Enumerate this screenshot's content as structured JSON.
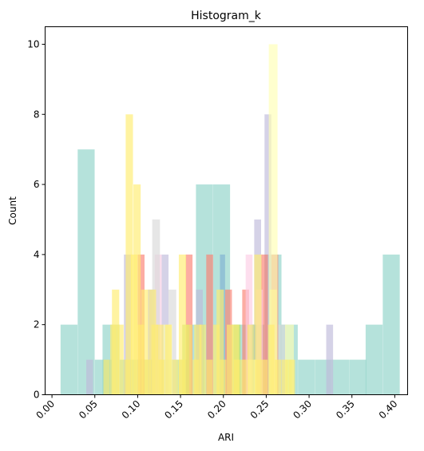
{
  "chart_data": {
    "type": "histogram",
    "title": "Histogram_k",
    "xlabel": "ARI",
    "ylabel": "Count",
    "xlim": [
      -0.008,
      0.415
    ],
    "ylim": [
      0,
      10.5
    ],
    "x_ticks": [
      "0.00",
      "0.05",
      "0.10",
      "0.15",
      "0.20",
      "0.25",
      "0.30",
      "0.35",
      "0.40"
    ],
    "y_ticks": [
      "0",
      "2",
      "4",
      "6",
      "8",
      "10"
    ],
    "x_tick_rotation": 45,
    "grid": false,
    "legend": "none",
    "series": [
      {
        "color": "#8dd3c7",
        "bin_width": 0.0198,
        "bins": [
          {
            "x": 0.01,
            "count": 2
          },
          {
            "x": 0.03,
            "count": 7
          },
          {
            "x": 0.05,
            "count": 1
          },
          {
            "x": 0.059,
            "count": 2
          },
          {
            "x": 0.079,
            "count": 1
          },
          {
            "x": 0.099,
            "count": 1
          },
          {
            "x": 0.119,
            "count": 1
          },
          {
            "x": 0.139,
            "count": 1
          },
          {
            "x": 0.158,
            "count": 2
          },
          {
            "x": 0.168,
            "count": 6
          },
          {
            "x": 0.188,
            "count": 6
          },
          {
            "x": 0.208,
            "count": 2
          },
          {
            "x": 0.228,
            "count": 2
          },
          {
            "x": 0.248,
            "count": 4
          },
          {
            "x": 0.267,
            "count": 2
          },
          {
            "x": 0.287,
            "count": 1
          },
          {
            "x": 0.307,
            "count": 1
          },
          {
            "x": 0.327,
            "count": 1
          },
          {
            "x": 0.347,
            "count": 1
          },
          {
            "x": 0.366,
            "count": 2
          },
          {
            "x": 0.386,
            "count": 4
          }
        ]
      },
      {
        "color": "#bebada",
        "bin_width": 0.008,
        "bins": [
          {
            "x": 0.04,
            "count": 1
          },
          {
            "x": 0.084,
            "count": 4
          },
          {
            "x": 0.112,
            "count": 3
          },
          {
            "x": 0.128,
            "count": 4
          },
          {
            "x": 0.168,
            "count": 3
          },
          {
            "x": 0.236,
            "count": 5
          },
          {
            "x": 0.248,
            "count": 8
          },
          {
            "x": 0.32,
            "count": 2
          }
        ]
      },
      {
        "color": "#fb8072",
        "bin_width": 0.008,
        "bins": [
          {
            "x": 0.1,
            "count": 4
          },
          {
            "x": 0.156,
            "count": 4
          },
          {
            "x": 0.18,
            "count": 4
          },
          {
            "x": 0.202,
            "count": 3
          },
          {
            "x": 0.222,
            "count": 3
          },
          {
            "x": 0.244,
            "count": 4
          },
          {
            "x": 0.256,
            "count": 4
          }
        ]
      },
      {
        "color": "#80b1d3",
        "bin_width": 0.006,
        "bins": [
          {
            "x": 0.196,
            "count": 4
          },
          {
            "x": 0.232,
            "count": 2
          }
        ]
      },
      {
        "color": "#b3de69",
        "bin_width": 0.008,
        "bins": [
          {
            "x": 0.152,
            "count": 2
          },
          {
            "x": 0.212,
            "count": 2
          },
          {
            "x": 0.272,
            "count": 1
          }
        ]
      },
      {
        "color": "#fccde5",
        "bin_width": 0.008,
        "bins": [
          {
            "x": 0.12,
            "count": 4
          },
          {
            "x": 0.226,
            "count": 4
          },
          {
            "x": 0.238,
            "count": 3
          }
        ]
      },
      {
        "color": "#d9d9d9",
        "bin_width": 0.009,
        "bins": [
          {
            "x": 0.117,
            "count": 5
          },
          {
            "x": 0.136,
            "count": 3
          },
          {
            "x": 0.264,
            "count": 2
          }
        ]
      },
      {
        "color": "#ffed6f",
        "bin_width": 0.0085,
        "bins": [
          {
            "x": 0.07,
            "count": 3
          },
          {
            "x": 0.086,
            "count": 8
          },
          {
            "x": 0.095,
            "count": 6
          },
          {
            "x": 0.104,
            "count": 3
          },
          {
            "x": 0.113,
            "count": 3
          },
          {
            "x": 0.122,
            "count": 2
          },
          {
            "x": 0.148,
            "count": 4
          },
          {
            "x": 0.166,
            "count": 2
          },
          {
            "x": 0.192,
            "count": 3
          },
          {
            "x": 0.21,
            "count": 2
          },
          {
            "x": 0.236,
            "count": 4
          },
          {
            "x": 0.254,
            "count": 3
          }
        ]
      },
      {
        "color": "#ffffb3",
        "bin_width": 0.0102,
        "bins": [
          {
            "x": 0.253,
            "count": 10
          },
          {
            "x": 0.13,
            "count": 2
          },
          {
            "x": 0.272,
            "count": 2
          },
          {
            "x": 0.228,
            "count": 1
          }
        ]
      },
      {
        "color": "#ffed6f",
        "bin_width": 0.0076,
        "bins": [
          {
            "x": 0.06,
            "count": 1
          },
          {
            "x": 0.068,
            "count": 2
          },
          {
            "x": 0.076,
            "count": 2
          },
          {
            "x": 0.084,
            "count": 1
          },
          {
            "x": 0.092,
            "count": 4
          },
          {
            "x": 0.1,
            "count": 2
          },
          {
            "x": 0.108,
            "count": 1
          },
          {
            "x": 0.116,
            "count": 2
          },
          {
            "x": 0.124,
            "count": 1
          },
          {
            "x": 0.132,
            "count": 2
          },
          {
            "x": 0.14,
            "count": 1
          },
          {
            "x": 0.148,
            "count": 1
          },
          {
            "x": 0.156,
            "count": 2
          },
          {
            "x": 0.164,
            "count": 1
          },
          {
            "x": 0.172,
            "count": 2
          },
          {
            "x": 0.18,
            "count": 1
          },
          {
            "x": 0.188,
            "count": 2
          },
          {
            "x": 0.196,
            "count": 1
          },
          {
            "x": 0.204,
            "count": 2
          },
          {
            "x": 0.212,
            "count": 1
          },
          {
            "x": 0.22,
            "count": 1
          },
          {
            "x": 0.228,
            "count": 2
          },
          {
            "x": 0.236,
            "count": 1
          },
          {
            "x": 0.244,
            "count": 1
          },
          {
            "x": 0.252,
            "count": 2
          },
          {
            "x": 0.26,
            "count": 1
          },
          {
            "x": 0.268,
            "count": 1
          },
          {
            "x": 0.276,
            "count": 1
          }
        ]
      }
    ]
  }
}
